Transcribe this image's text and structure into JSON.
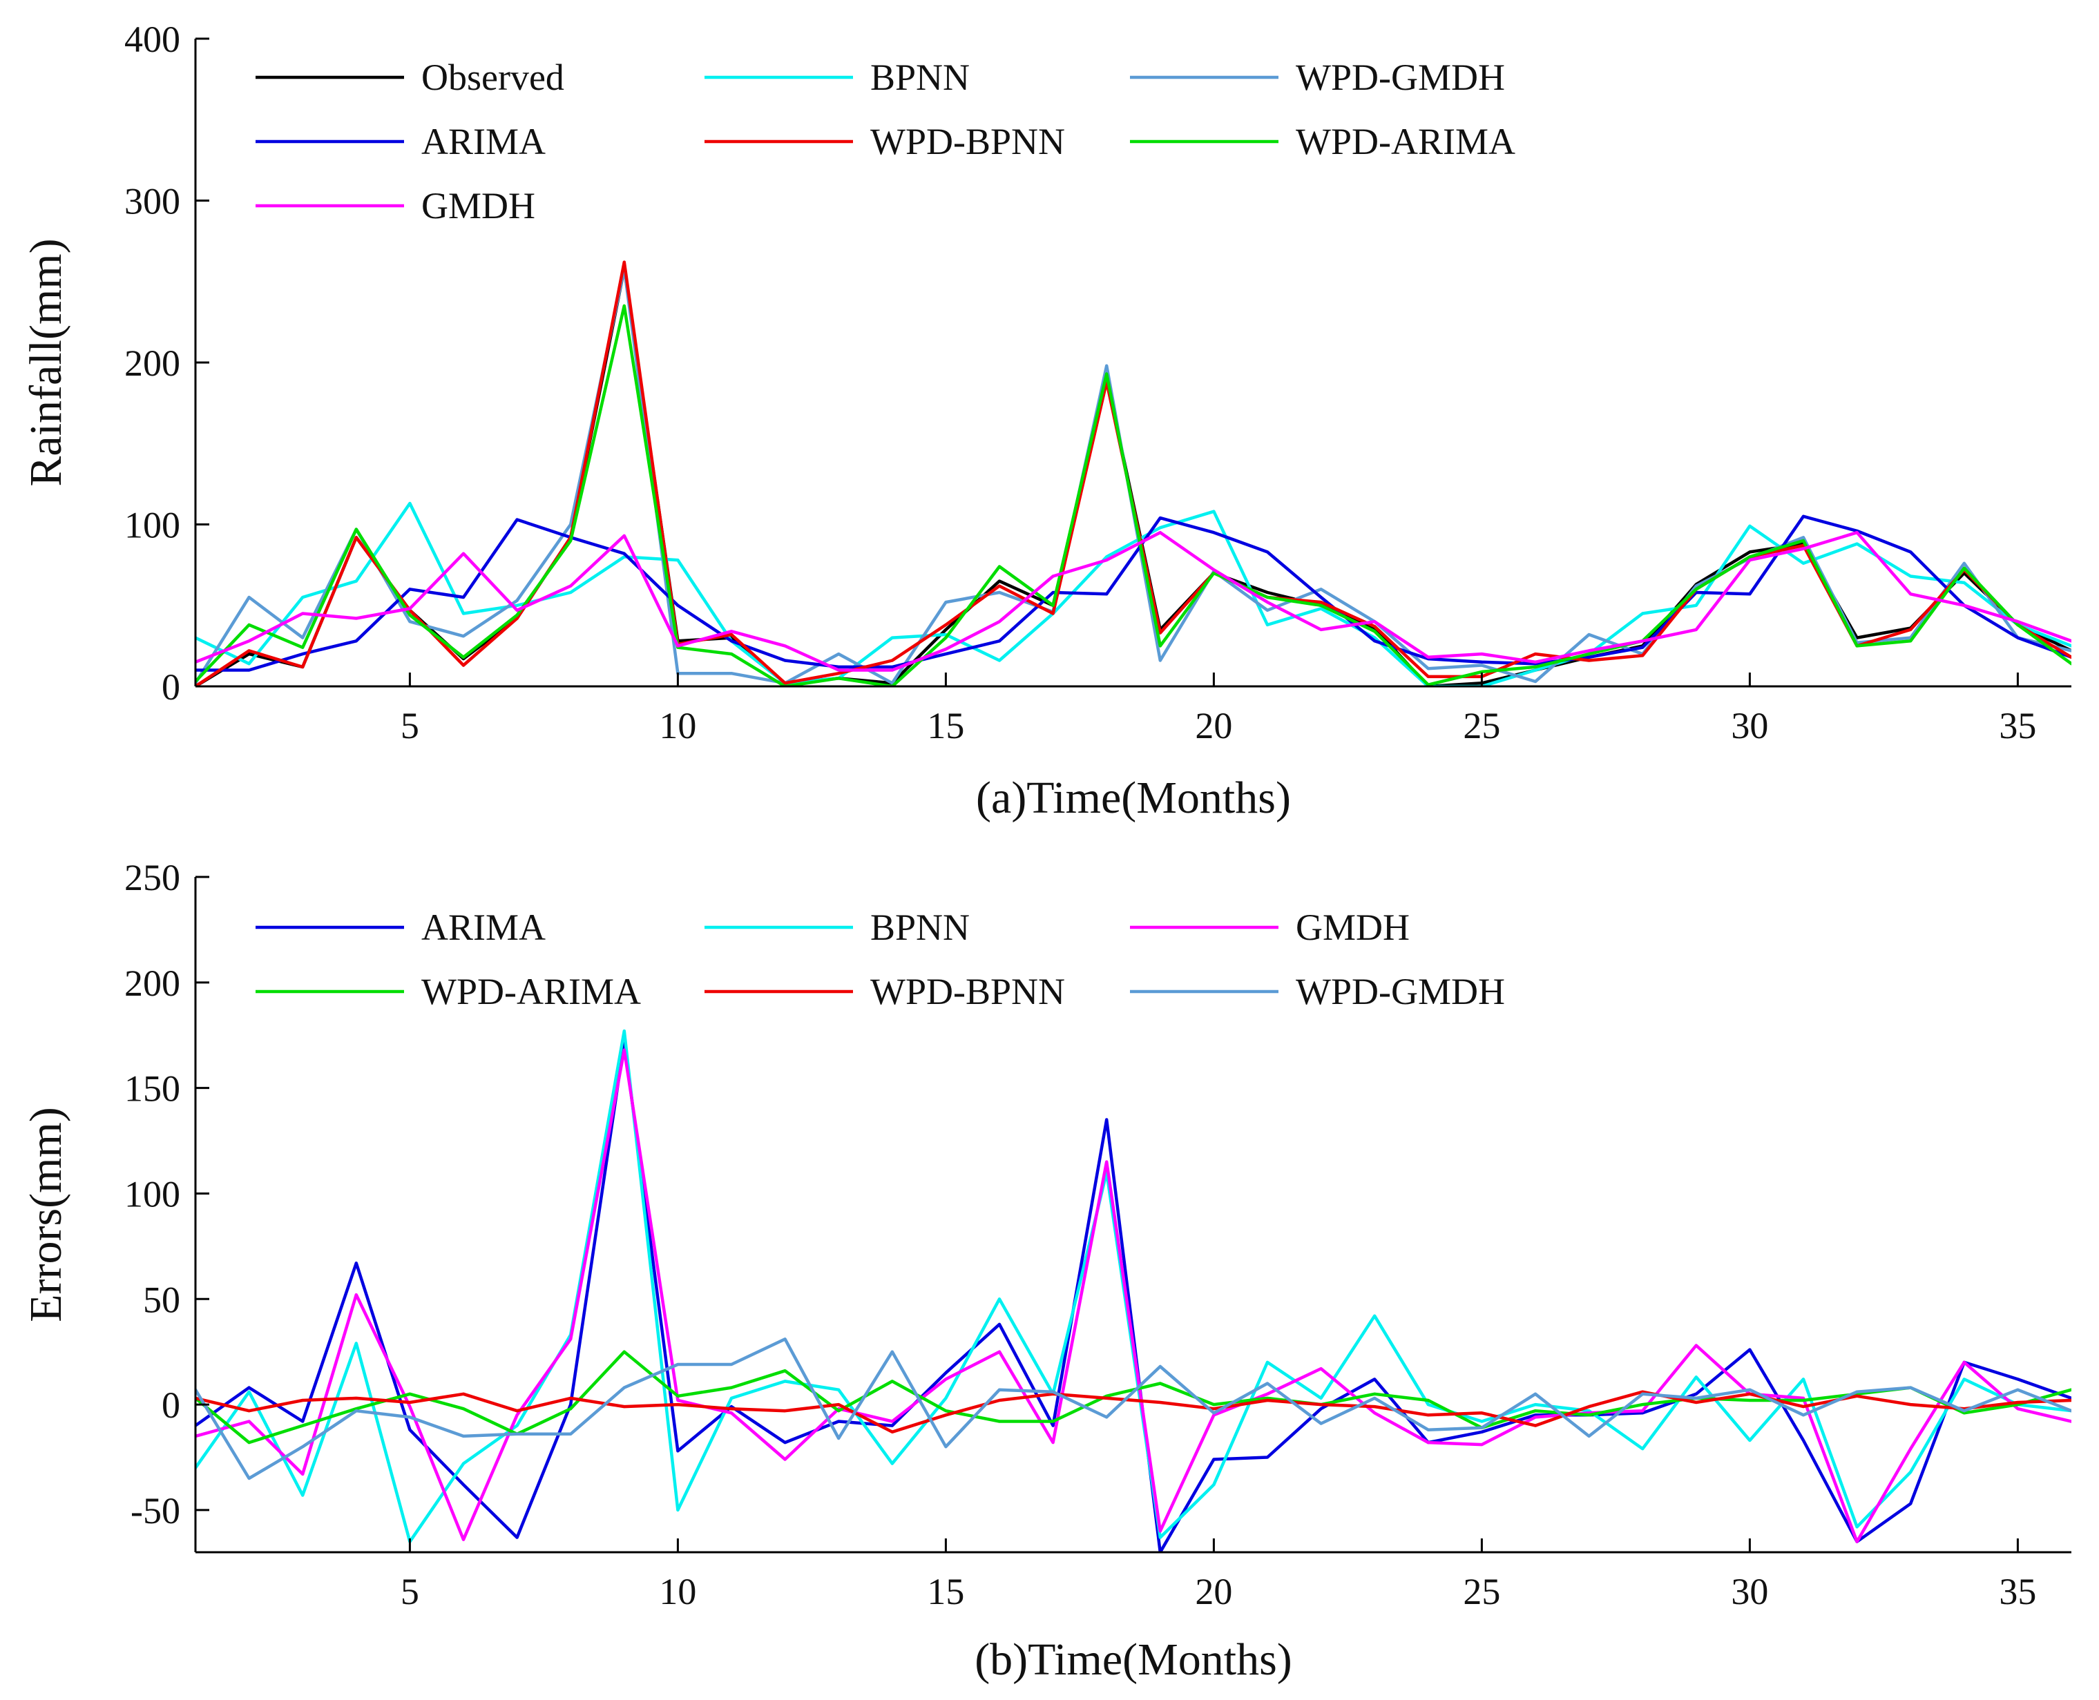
{
  "chart_data": [
    {
      "type": "line",
      "ylabel": "Rainfall(mm)",
      "xlabel": "(a)Time(Months)",
      "xlim": [
        1,
        36
      ],
      "ylim": [
        0,
        400
      ],
      "xticks": [
        5,
        10,
        15,
        20,
        25,
        30,
        35
      ],
      "yticks": [
        0,
        100,
        200,
        300,
        400
      ],
      "grid": false,
      "legend_position": "top-left",
      "legend_order": [
        "Observed",
        "BPNN",
        "WPD-GMDH",
        "ARIMA",
        "WPD-BPNN",
        "WPD-ARIMA",
        "GMDH"
      ],
      "x": [
        1,
        2,
        3,
        4,
        5,
        6,
        7,
        8,
        9,
        10,
        11,
        12,
        13,
        14,
        15,
        16,
        17,
        18,
        19,
        20,
        21,
        22,
        23,
        24,
        25,
        26,
        27,
        28,
        29,
        30,
        31,
        32,
        33,
        34,
        35,
        36
      ],
      "series": [
        {
          "name": "Observed",
          "color": "#000000",
          "values": [
            0,
            20,
            12,
            92,
            47,
            17,
            42,
            92,
            258,
            28,
            30,
            2,
            5,
            2,
            35,
            65,
            50,
            190,
            35,
            70,
            58,
            50,
            36,
            0,
            2,
            10,
            18,
            25,
            63,
            83,
            88,
            30,
            36,
            70,
            38,
            22
          ]
        },
        {
          "name": "BPNN",
          "color": "#00f0f0",
          "values": [
            30,
            14,
            55,
            65,
            113,
            45,
            50,
            58,
            80,
            78,
            28,
            2,
            5,
            30,
            32,
            16,
            45,
            80,
            98,
            108,
            38,
            48,
            30,
            0,
            0,
            10,
            20,
            45,
            50,
            99,
            76,
            88,
            68,
            64,
            38,
            25
          ]
        },
        {
          "name": "WPD-GMDH",
          "color": "#5b9bd5",
          "values": [
            2,
            55,
            30,
            97,
            40,
            31,
            53,
            100,
            258,
            8,
            8,
            2,
            20,
            2,
            52,
            58,
            46,
            198,
            16,
            71,
            47,
            60,
            40,
            11,
            13,
            3,
            32,
            20,
            62,
            79,
            92,
            27,
            30,
            76,
            30,
            22
          ]
        },
        {
          "name": "ARIMA",
          "color": "#0000e0",
          "values": [
            10,
            10,
            20,
            28,
            60,
            55,
            103,
            92,
            82,
            50,
            28,
            16,
            12,
            12,
            20,
            28,
            58,
            57,
            104,
            95,
            83,
            55,
            28,
            17,
            15,
            14,
            18,
            24,
            58,
            57,
            105,
            96,
            83,
            50,
            30,
            18
          ]
        },
        {
          "name": "WPD-BPNN",
          "color": "#ee0000",
          "values": [
            0,
            22,
            12,
            92,
            47,
            13,
            42,
            92,
            262,
            26,
            32,
            2,
            8,
            16,
            38,
            62,
            45,
            188,
            33,
            70,
            55,
            52,
            37,
            6,
            6,
            20,
            16,
            19,
            60,
            80,
            87,
            25,
            35,
            72,
            38,
            18
          ]
        },
        {
          "name": "WPD-ARIMA",
          "color": "#00dd00",
          "values": [
            3,
            38,
            24,
            97,
            44,
            18,
            44,
            90,
            235,
            24,
            20,
            0,
            5,
            0,
            30,
            74,
            50,
            193,
            25,
            70,
            55,
            50,
            34,
            1,
            9,
            12,
            20,
            28,
            60,
            80,
            90,
            25,
            28,
            73,
            38,
            14
          ]
        },
        {
          "name": "GMDH",
          "color": "#ff00ff",
          "values": [
            15,
            28,
            45,
            42,
            48,
            82,
            47,
            62,
            93,
            25,
            34,
            25,
            10,
            10,
            23,
            40,
            68,
            78,
            95,
            72,
            52,
            35,
            40,
            18,
            20,
            15,
            22,
            28,
            35,
            78,
            85,
            95,
            57,
            50,
            40,
            28
          ]
        }
      ]
    },
    {
      "type": "line",
      "ylabel": "Errors(mm)",
      "xlabel": "(b)Time(Months)",
      "xlim": [
        1,
        36
      ],
      "ylim": [
        -70,
        250
      ],
      "xticks": [
        5,
        10,
        15,
        20,
        25,
        30,
        35
      ],
      "yticks": [
        -50,
        0,
        50,
        100,
        150,
        200,
        250
      ],
      "grid": false,
      "legend_position": "top-left",
      "legend_order": [
        "ARIMA",
        "BPNN",
        "GMDH",
        "WPD-ARIMA",
        "WPD-BPNN",
        "WPD-GMDH"
      ],
      "x": [
        1,
        2,
        3,
        4,
        5,
        6,
        7,
        8,
        9,
        10,
        11,
        12,
        13,
        14,
        15,
        16,
        17,
        18,
        19,
        20,
        21,
        22,
        23,
        24,
        25,
        26,
        27,
        28,
        29,
        30,
        31,
        32,
        33,
        34,
        35,
        36
      ],
      "series": [
        {
          "name": "ARIMA",
          "color": "#0000e0",
          "values": [
            -10,
            8,
            -8,
            67,
            -12,
            -38,
            -63,
            0,
            172,
            -22,
            -1,
            -18,
            -8,
            -10,
            15,
            38,
            -10,
            135,
            -70,
            -26,
            -25,
            -2,
            12,
            -18,
            -13,
            -5,
            -5,
            -4,
            5,
            26,
            -17,
            -65,
            -47,
            20,
            12,
            3
          ]
        },
        {
          "name": "BPNN",
          "color": "#00f0f0",
          "values": [
            -30,
            6,
            -43,
            29,
            -65,
            -28,
            -10,
            33,
            177,
            -50,
            3,
            11,
            7,
            -28,
            3,
            50,
            5,
            110,
            -63,
            -38,
            20,
            3,
            42,
            0,
            -8,
            0,
            -3,
            -21,
            13,
            -17,
            12,
            -58,
            -32,
            12,
            0,
            -3
          ]
        },
        {
          "name": "GMDH",
          "color": "#ff00ff",
          "values": [
            -15,
            -8,
            -33,
            52,
            -1,
            -64,
            -5,
            31,
            168,
            2,
            -4,
            -26,
            -2,
            -8,
            12,
            25,
            -18,
            115,
            -60,
            -5,
            5,
            17,
            -4,
            -18,
            -19,
            -6,
            -4,
            -3,
            28,
            5,
            3,
            -65,
            -21,
            20,
            -2,
            -8
          ]
        },
        {
          "name": "WPD-ARIMA",
          "color": "#00dd00",
          "values": [
            3,
            -18,
            -10,
            -2,
            5,
            -2,
            -14,
            -2,
            25,
            4,
            8,
            16,
            -3,
            11,
            -3,
            -8,
            -8,
            4,
            10,
            0,
            3,
            0,
            5,
            2,
            -11,
            -3,
            -5,
            0,
            3,
            2,
            2,
            5,
            8,
            -4,
            0,
            7
          ]
        },
        {
          "name": "WPD-BPNN",
          "color": "#ee0000",
          "values": [
            3,
            -3,
            2,
            3,
            1,
            5,
            -3,
            3,
            -1,
            0,
            -2,
            -3,
            0,
            -13,
            -5,
            2,
            5,
            3,
            1,
            -2,
            2,
            0,
            -1,
            -5,
            -4,
            -10,
            -1,
            6,
            1,
            5,
            -1,
            4,
            0,
            -2,
            1,
            2
          ]
        },
        {
          "name": "WPD-GMDH",
          "color": "#5b9bd5",
          "values": [
            7,
            -35,
            -20,
            -3,
            -6,
            -15,
            -14,
            -14,
            8,
            19,
            19,
            31,
            -16,
            25,
            -20,
            7,
            6,
            -6,
            18,
            -4,
            10,
            -9,
            3,
            -12,
            -11,
            5,
            -15,
            5,
            3,
            7,
            -5,
            6,
            8,
            -3,
            7,
            -3
          ]
        }
      ]
    }
  ]
}
